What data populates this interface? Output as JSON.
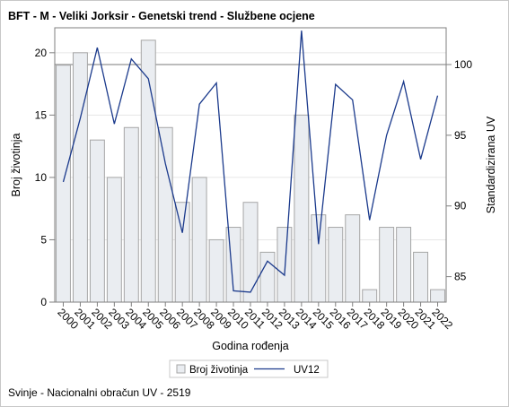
{
  "chart_data": {
    "type": "bar+line",
    "title": "BFT - M - Veliki Jorksir - Genetski trend - Službene ocjene",
    "xlabel": "Godina rođenja",
    "ylabel_left": "Broj životinja",
    "ylabel_right": "Standardizirana UV",
    "categories": [
      "2000",
      "2001",
      "2002",
      "2003",
      "2004",
      "2005",
      "2006",
      "2007",
      "2008",
      "2009",
      "2010",
      "2011",
      "2012",
      "2013",
      "2014",
      "2015",
      "2016",
      "2017",
      "2018",
      "2019",
      "2020",
      "2021",
      "2022"
    ],
    "series": [
      {
        "name": "Broj životinja",
        "type": "bar",
        "axis": "left",
        "values": [
          19,
          20,
          13,
          10,
          14,
          21,
          14,
          8,
          10,
          5,
          6,
          8,
          4,
          6,
          15,
          7,
          6,
          7,
          1,
          6,
          6,
          4,
          1
        ]
      },
      {
        "name": "UV12",
        "type": "line",
        "axis": "right",
        "values": [
          91.7,
          96.2,
          101.2,
          95.8,
          100.4,
          99.0,
          93.0,
          88.1,
          97.2,
          98.7,
          84.0,
          83.9,
          86.1,
          85.1,
          102.4,
          87.3,
          98.6,
          97.5,
          89.0,
          95.0,
          98.8,
          93.3,
          97.8
        ]
      }
    ],
    "ylim_left": [
      0,
      22
    ],
    "yticks_left": [
      0,
      5,
      10,
      15,
      20
    ],
    "ylim_right": [
      83.2,
      102.6
    ],
    "yticks_right": [
      85,
      90,
      95,
      100
    ],
    "reference_line_right": 100,
    "colors": {
      "bar_fill": "#eaedf1",
      "bar_stroke": "#a6a6a6",
      "line": "#1b3a8c",
      "ref_line": "#a6a6a6",
      "grid": "#e6e6e6"
    },
    "legend_position": "bottom",
    "footnote": "Svinje - Nacionalni obračun UV - 2519"
  }
}
